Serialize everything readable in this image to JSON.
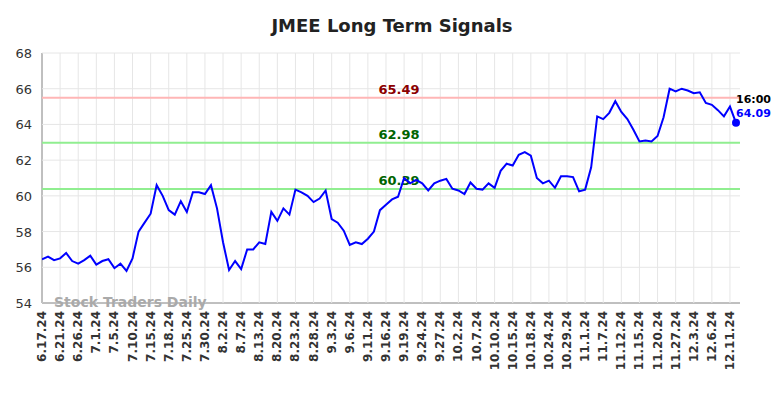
{
  "chart_data": {
    "type": "line",
    "title": "JMEE Long Term Signals",
    "categories": [
      "6.17.24",
      null,
      null,
      "6.21.24",
      null,
      null,
      "6.26.24",
      null,
      null,
      "7.1.24",
      null,
      null,
      "7.5.24",
      null,
      null,
      "7.10.24",
      null,
      null,
      "7.15.24",
      null,
      null,
      "7.18.24",
      null,
      null,
      "7.25.24",
      null,
      null,
      "7.30.24",
      null,
      null,
      "8.2.24",
      null,
      null,
      "8.7.24",
      null,
      null,
      "8.13.24",
      null,
      null,
      "8.20.24",
      null,
      null,
      "8.23.24",
      null,
      null,
      "8.28.24",
      null,
      null,
      "9.3.24",
      null,
      null,
      "9.6.24",
      null,
      null,
      "9.11.24",
      null,
      null,
      "9.16.24",
      null,
      null,
      "9.19.24",
      null,
      null,
      "9.24.24",
      null,
      null,
      "9.27.24",
      null,
      null,
      "10.2.24",
      null,
      null,
      "10.7.24",
      null,
      null,
      "10.10.24",
      null,
      null,
      "10.15.24",
      null,
      null,
      "10.18.24",
      null,
      null,
      "10.24.24",
      null,
      null,
      "10.29.24",
      null,
      null,
      "11.1.24",
      null,
      null,
      "11.7.24",
      null,
      null,
      "11.12.24",
      null,
      null,
      "11.15.24",
      null,
      null,
      "11.20.24",
      null,
      null,
      "11.27.24",
      null,
      null,
      "12.3.24",
      null,
      null,
      "12.6.24",
      null,
      null,
      "12.11.24",
      null
    ],
    "values": [
      56.45,
      56.6,
      56.4,
      56.5,
      56.8,
      56.35,
      56.2,
      56.4,
      56.65,
      56.15,
      56.35,
      56.45,
      55.95,
      56.2,
      55.8,
      56.5,
      58.0,
      58.5,
      59.0,
      60.6,
      60.0,
      59.2,
      58.95,
      59.7,
      59.1,
      60.2,
      60.2,
      60.1,
      60.6,
      59.3,
      57.4,
      55.85,
      56.35,
      55.9,
      57.0,
      57.0,
      57.4,
      57.3,
      59.1,
      58.6,
      59.3,
      58.95,
      60.35,
      60.2,
      60.0,
      59.65,
      59.85,
      60.3,
      58.7,
      58.5,
      58.05,
      57.25,
      57.4,
      57.3,
      57.6,
      58.0,
      59.2,
      59.5,
      59.8,
      59.95,
      61.0,
      60.7,
      60.9,
      60.7,
      60.3,
      60.7,
      60.85,
      60.95,
      60.4,
      60.3,
      60.1,
      60.75,
      60.4,
      60.35,
      60.7,
      60.45,
      61.4,
      61.8,
      61.7,
      62.3,
      62.45,
      62.25,
      61.0,
      60.7,
      60.85,
      60.45,
      61.1,
      61.1,
      61.05,
      60.25,
      60.35,
      61.6,
      64.45,
      64.3,
      64.65,
      65.3,
      64.7,
      64.3,
      63.7,
      63.05,
      63.1,
      63.05,
      63.35,
      64.4,
      66.0,
      65.85,
      66.0,
      65.9,
      65.75,
      65.8,
      65.2,
      65.1,
      64.8,
      64.45,
      65.0,
      64.09
    ],
    "color": "#0000ff",
    "ylim": [
      54,
      68
    ],
    "yticks": [
      54,
      56,
      58,
      60,
      62,
      64,
      66,
      68
    ],
    "grid": true,
    "reference_lines": [
      {
        "value": 65.49,
        "color": "#ffb6b6",
        "label_color": "#8b0000"
      },
      {
        "value": 62.98,
        "color": "#90ee90",
        "label_color": "#006400"
      },
      {
        "value": 60.39,
        "color": "#90ee90",
        "label_color": "#006400"
      }
    ],
    "annotations": [
      "16:00"
    ],
    "watermark": "Stock Traders Daily"
  }
}
